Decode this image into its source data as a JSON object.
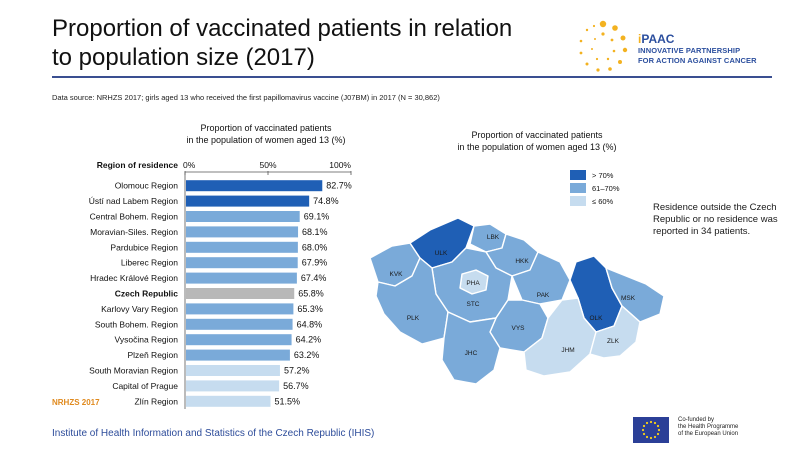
{
  "header": {
    "title_line1": "Proportion of vaccinated patients in relation",
    "title_line2": "to population size (2017)"
  },
  "logo": {
    "name_prefix": "i",
    "name": "PAAC",
    "tagline_line1": "INNOVATIVE PARTNERSHIP",
    "tagline_line2": "FOR ACTION AGAINST CANCER"
  },
  "source_note": "Data source: NRHZS 2017; girls aged 13 who received the first papillomavirus vaccine (J07BM) in 2017 (N = 30,862)",
  "colors": {
    "high": "#1f5fb5",
    "mid": "#7aaad9",
    "low": "#c6dcef",
    "national": "#b8b8b8",
    "brand_blue": "#2c4f9e",
    "accent_orange": "#e08a1e"
  },
  "chart_data": [
    {
      "type": "bar",
      "orientation": "horizontal",
      "title_line1": "Proportion of vaccinated patients",
      "title_line2": "in the population of women aged 13 (%)",
      "category_header": "Region of residence",
      "xlim": [
        0,
        100
      ],
      "x_ticks": [
        "0%",
        "50%",
        "100%"
      ],
      "categories": [
        "Olomouc Region",
        "Ústí nad Labem Region",
        "Central Bohem. Region",
        "Moravian-Siles. Region",
        "Pardubice Region",
        "Liberec Region",
        "Hradec Králové Region",
        "Czech Republic",
        "Karlovy Vary Region",
        "South Bohem. Region",
        "Vysočina Region",
        "Plzeň Region",
        "South Moravian Region",
        "Capital of Prague",
        "Zlín Region"
      ],
      "values": [
        82.7,
        74.8,
        69.1,
        68.1,
        68.0,
        67.9,
        67.4,
        65.8,
        65.3,
        64.8,
        64.2,
        63.2,
        57.2,
        56.7,
        51.5
      ],
      "value_labels": [
        "82.7%",
        "74.8%",
        "69.1%",
        "68.1%",
        "68.0%",
        "67.9%",
        "67.4%",
        "65.8%",
        "65.3%",
        "64.8%",
        "64.2%",
        "63.2%",
        "57.2%",
        "56.7%",
        "51.5%"
      ],
      "bold_category": "Czech Republic",
      "watermark": "NRHZS 2017"
    },
    {
      "type": "choropleth-map",
      "title_line1": "Proportion of vaccinated patients",
      "title_line2": "in the population of women aged 13 (%)",
      "legend": [
        {
          "label": "> 70%",
          "level": "high"
        },
        {
          "label": "61–70%",
          "level": "mid"
        },
        {
          "label": "≤ 60%",
          "level": "low"
        }
      ],
      "regions": [
        {
          "code": "KVK",
          "level": "mid"
        },
        {
          "code": "ULK",
          "level": "high"
        },
        {
          "code": "LBK",
          "level": "mid"
        },
        {
          "code": "HKK",
          "level": "mid"
        },
        {
          "code": "PHA",
          "level": "low"
        },
        {
          "code": "STC",
          "level": "mid"
        },
        {
          "code": "PAK",
          "level": "mid"
        },
        {
          "code": "PLK",
          "level": "mid"
        },
        {
          "code": "VYS",
          "level": "mid"
        },
        {
          "code": "OLK",
          "level": "high"
        },
        {
          "code": "MSK",
          "level": "mid"
        },
        {
          "code": "JHC",
          "level": "mid"
        },
        {
          "code": "JHM",
          "level": "low"
        },
        {
          "code": "ZLK",
          "level": "low"
        }
      ],
      "note": "Residence outside the Czech Republic or no residence was reported in 34 patients."
    }
  ],
  "footer": {
    "institute": "Institute of Health Information and Statistics of the Czech Republic (IHIS)",
    "eu_line1": "Co-funded by",
    "eu_line2": "the Health Programme",
    "eu_line3": "of the European Union"
  }
}
